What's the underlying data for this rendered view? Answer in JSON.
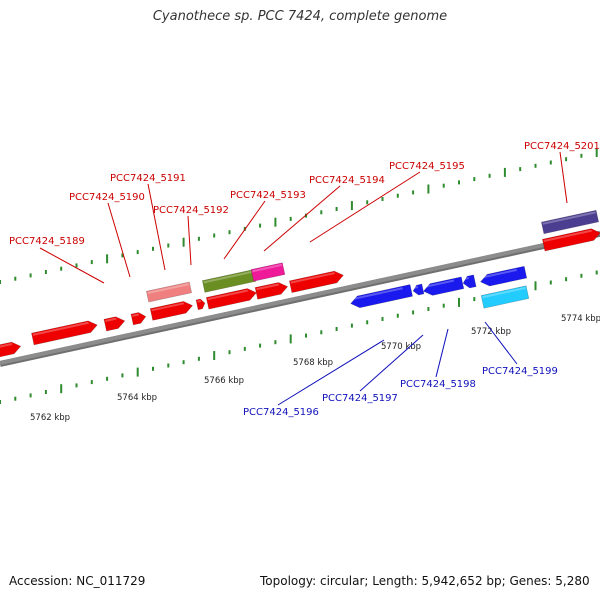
{
  "title": "Cyanothece sp. PCC 7424, complete genome",
  "footer": {
    "accession": "Accession: NC_011729",
    "summary": "Topology: circular; Length: 5,942,652 bp; Genes: 5,280"
  },
  "colors": {
    "forward_label": "#cc0000",
    "reverse_label": "#1111bb",
    "tick": "#2e8b2e",
    "backbone": "#8c8c8c"
  },
  "scale_labels": [
    "5762 kbp",
    "5764 kbp",
    "5766 kbp",
    "5768 kbp",
    "5770 kbp",
    "5772 kbp",
    "5774 kbp"
  ],
  "forward_genes": [
    {
      "label": "PCC7424_5189"
    },
    {
      "label": "PCC7424_5190"
    },
    {
      "label": "PCC7424_5191"
    },
    {
      "label": "PCC7424_5192"
    },
    {
      "label": "PCC7424_5193"
    },
    {
      "label": "PCC7424_5194"
    },
    {
      "label": "PCC7424_5195"
    },
    {
      "label": "PCC7424_5201"
    }
  ],
  "reverse_genes": [
    {
      "label": "PCC7424_5196"
    },
    {
      "label": "PCC7424_5197"
    },
    {
      "label": "PCC7424_5198"
    },
    {
      "label": "PCC7424_5199"
    }
  ]
}
